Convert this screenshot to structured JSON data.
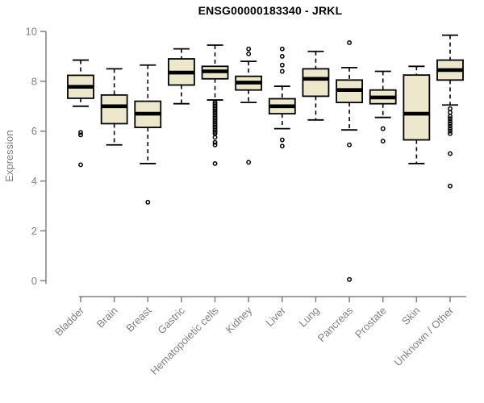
{
  "title": "ENSG00000183340 - JRKL",
  "chart_data": {
    "type": "boxplot",
    "title": "ENSG00000183340 - JRKL",
    "xlabel": "",
    "ylabel": "Expression",
    "ylim": [
      0,
      10
    ],
    "yticks": [
      0,
      2,
      4,
      6,
      8,
      10
    ],
    "grid": false,
    "legend": "none",
    "categories": [
      "Bladder",
      "Brain",
      "Breast",
      "Gastric",
      "Hematopoietic cells",
      "Kidney",
      "Liver",
      "Lung",
      "Pancreas",
      "Prostate",
      "Skin",
      "Unknown / Other"
    ],
    "boxes": [
      {
        "category": "Bladder",
        "whisker_low": 7.0,
        "q1": 7.32,
        "median": 7.78,
        "q3": 8.24,
        "whisker_high": 8.85,
        "outliers": [
          5.95,
          5.85,
          4.65
        ]
      },
      {
        "category": "Brain",
        "whisker_low": 5.45,
        "q1": 6.3,
        "median": 7.0,
        "q3": 7.45,
        "whisker_high": 8.5,
        "outliers": []
      },
      {
        "category": "Breast",
        "whisker_low": 4.7,
        "q1": 6.15,
        "median": 6.7,
        "q3": 7.2,
        "whisker_high": 8.65,
        "outliers": [
          3.15
        ]
      },
      {
        "category": "Gastric",
        "whisker_low": 7.1,
        "q1": 7.85,
        "median": 8.35,
        "q3": 8.9,
        "whisker_high": 9.3,
        "outliers": []
      },
      {
        "category": "Hematopoietic cells",
        "whisker_low": 7.25,
        "q1": 8.1,
        "median": 8.4,
        "q3": 8.6,
        "whisker_high": 9.45,
        "outliers": [
          7.15,
          7.08,
          7.01,
          6.94,
          6.87,
          6.8,
          6.73,
          6.66,
          6.59,
          6.52,
          6.45,
          6.38,
          6.31,
          6.24,
          6.17,
          6.1,
          6.03,
          5.96,
          5.9,
          5.75,
          5.55,
          5.45,
          4.7
        ]
      },
      {
        "category": "Kidney",
        "whisker_low": 7.15,
        "q1": 7.65,
        "median": 7.95,
        "q3": 8.2,
        "whisker_high": 8.8,
        "outliers": [
          9.3,
          9.1,
          4.75
        ]
      },
      {
        "category": "Liver",
        "whisker_low": 6.1,
        "q1": 6.7,
        "median": 7.0,
        "q3": 7.3,
        "whisker_high": 7.8,
        "outliers": [
          9.3,
          9.0,
          8.65,
          8.4,
          5.65,
          5.4
        ]
      },
      {
        "category": "Lung",
        "whisker_low": 6.45,
        "q1": 7.4,
        "median": 8.1,
        "q3": 8.5,
        "whisker_high": 9.2,
        "outliers": []
      },
      {
        "category": "Pancreas",
        "whisker_low": 6.05,
        "q1": 7.15,
        "median": 7.65,
        "q3": 8.05,
        "whisker_high": 8.55,
        "outliers": [
          9.55,
          5.45,
          0.05
        ]
      },
      {
        "category": "Prostate",
        "whisker_low": 6.55,
        "q1": 7.1,
        "median": 7.35,
        "q3": 7.65,
        "whisker_high": 8.4,
        "outliers": [
          6.1,
          5.6
        ]
      },
      {
        "category": "Skin",
        "whisker_low": 4.7,
        "q1": 5.65,
        "median": 6.7,
        "q3": 8.25,
        "whisker_high": 8.6,
        "outliers": []
      },
      {
        "category": "Unknown / Other",
        "whisker_low": 7.05,
        "q1": 8.05,
        "median": 8.45,
        "q3": 8.85,
        "whisker_high": 9.85,
        "outliers": [
          6.9,
          6.75,
          6.6,
          6.5,
          6.4,
          6.3,
          6.2,
          6.1,
          6.0,
          5.9,
          5.1,
          3.8
        ]
      }
    ],
    "colors": {
      "box_fill": "#EDE7CB",
      "box_border": "#000000",
      "median": "#000000",
      "whisker": "#000000",
      "outlier": "#000000",
      "axis": "#808080",
      "tick_label": "#808080",
      "title": "#000000",
      "background": "#FFFFFF"
    }
  }
}
